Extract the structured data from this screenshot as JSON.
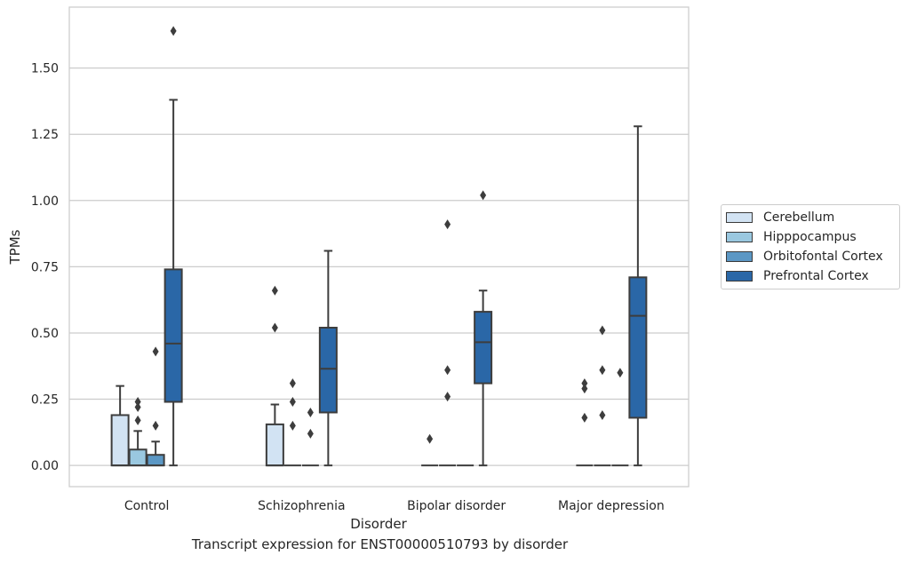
{
  "caption": "Transcript expression for ENST00000510793 by disorder",
  "chart_data": {
    "type": "boxplot",
    "xlabel": "Disorder",
    "ylabel": "TPMs",
    "ylim": [
      -0.08,
      1.73
    ],
    "yticks": [
      0.0,
      0.25,
      0.5,
      0.75,
      1.0,
      1.25,
      1.5
    ],
    "ytick_labels": [
      "0.00",
      "0.25",
      "0.50",
      "0.75",
      "1.00",
      "1.25",
      "1.50"
    ],
    "grid": "horizontal",
    "legend_position": "right",
    "categories": [
      "Control",
      "Schizophrenia",
      "Bipolar disorder",
      "Major depression"
    ],
    "series": [
      {
        "name": "Cerebellum",
        "color": "#d2e3f3",
        "boxes": [
          {
            "q1": 0.0,
            "median": 0.0,
            "q3": 0.19,
            "whisker_low": 0.0,
            "whisker_high": 0.3,
            "outliers": []
          },
          {
            "q1": 0.0,
            "median": 0.0,
            "q3": 0.155,
            "whisker_low": 0.0,
            "whisker_high": 0.23,
            "outliers": [
              0.52,
              0.66
            ]
          },
          {
            "q1": 0.0,
            "median": 0.0,
            "q3": 0.0,
            "whisker_low": 0.0,
            "whisker_high": 0.0,
            "outliers": [
              0.1
            ]
          },
          {
            "q1": 0.0,
            "median": 0.0,
            "q3": 0.0,
            "whisker_low": 0.0,
            "whisker_high": 0.0,
            "outliers": [
              0.18,
              0.29,
              0.31
            ]
          }
        ]
      },
      {
        "name": "Hipppocampus",
        "color": "#9ac8e0",
        "boxes": [
          {
            "q1": 0.0,
            "median": 0.0,
            "q3": 0.06,
            "whisker_low": 0.0,
            "whisker_high": 0.13,
            "outliers": [
              0.17,
              0.22,
              0.24
            ]
          },
          {
            "q1": 0.0,
            "median": 0.0,
            "q3": 0.0,
            "whisker_low": 0.0,
            "whisker_high": 0.0,
            "outliers": [
              0.15,
              0.24,
              0.31
            ]
          },
          {
            "q1": 0.0,
            "median": 0.0,
            "q3": 0.0,
            "whisker_low": 0.0,
            "whisker_high": 0.0,
            "outliers": [
              0.26,
              0.36,
              0.91
            ]
          },
          {
            "q1": 0.0,
            "median": 0.0,
            "q3": 0.0,
            "whisker_low": 0.0,
            "whisker_high": 0.0,
            "outliers": [
              0.19,
              0.36,
              0.51
            ]
          }
        ]
      },
      {
        "name": "Orbitofontal Cortex",
        "color": "#5b97c4",
        "boxes": [
          {
            "q1": 0.0,
            "median": 0.0,
            "q3": 0.04,
            "whisker_low": 0.0,
            "whisker_high": 0.09,
            "outliers": [
              0.15,
              0.43
            ]
          },
          {
            "q1": 0.0,
            "median": 0.0,
            "q3": 0.0,
            "whisker_low": 0.0,
            "whisker_high": 0.0,
            "outliers": [
              0.12,
              0.2
            ]
          },
          {
            "q1": 0.0,
            "median": 0.0,
            "q3": 0.0,
            "whisker_low": 0.0,
            "whisker_high": 0.0,
            "outliers": []
          },
          {
            "q1": 0.0,
            "median": 0.0,
            "q3": 0.0,
            "whisker_low": 0.0,
            "whisker_high": 0.0,
            "outliers": [
              0.35
            ]
          }
        ]
      },
      {
        "name": "Prefrontal Cortex",
        "color": "#2a67a7",
        "boxes": [
          {
            "q1": 0.24,
            "median": 0.46,
            "q3": 0.74,
            "whisker_low": 0.0,
            "whisker_high": 1.38,
            "outliers": [
              1.64
            ]
          },
          {
            "q1": 0.2,
            "median": 0.365,
            "q3": 0.52,
            "whisker_low": 0.0,
            "whisker_high": 0.81,
            "outliers": []
          },
          {
            "q1": 0.31,
            "median": 0.465,
            "q3": 0.58,
            "whisker_low": 0.0,
            "whisker_high": 0.66,
            "outliers": [
              1.02
            ]
          },
          {
            "q1": 0.18,
            "median": 0.565,
            "q3": 0.71,
            "whisker_low": 0.0,
            "whisker_high": 1.28,
            "outliers": []
          }
        ]
      }
    ]
  }
}
